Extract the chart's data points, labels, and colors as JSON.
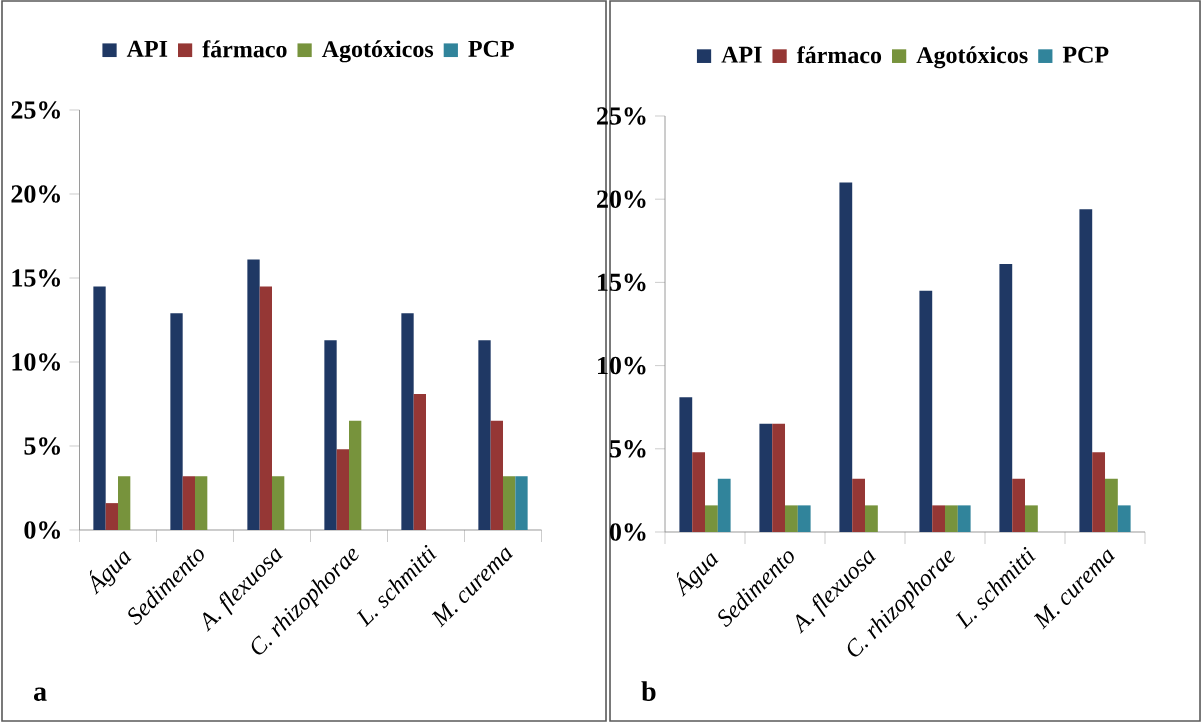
{
  "chart_data": [
    {
      "type": "bar",
      "categories": [
        "Água",
        "Sedimento",
        "A. flexuosa",
        "C. rhizophorae",
        "L. schmitti",
        "M. curema"
      ],
      "series": [
        {
          "name": "API",
          "color": "#1f3864",
          "values": [
            14.5,
            12.9,
            16.1,
            11.3,
            12.9,
            11.3
          ]
        },
        {
          "name": "fármaco",
          "color": "#953735",
          "values": [
            1.6,
            3.2,
            14.5,
            4.8,
            8.1,
            6.5
          ]
        },
        {
          "name": "Agotóxicos",
          "color": "#77933c",
          "values": [
            3.2,
            3.2,
            3.2,
            6.5,
            0,
            3.2
          ]
        },
        {
          "name": "PCP",
          "color": "#31849b",
          "values": [
            0,
            0,
            0,
            0,
            0,
            3.2
          ]
        }
      ],
      "ylim": [
        0,
        25
      ],
      "yticks": [
        {
          "value": 0,
          "label": "0%"
        },
        {
          "value": 5,
          "label": "5%"
        },
        {
          "value": 10,
          "label": "10%"
        },
        {
          "value": 15,
          "label": "15%"
        },
        {
          "value": 20,
          "label": "20%"
        },
        {
          "value": 25,
          "label": "25%"
        }
      ],
      "grid": false,
      "legend": "top",
      "annotations": [
        "a"
      ]
    },
    {
      "type": "bar",
      "categories": [
        "Água",
        "Sedimento",
        "A. flexuosa",
        "C. rhizophorae",
        "L. schmitti",
        "M. curema"
      ],
      "series": [
        {
          "name": "API",
          "color": "#1f3864",
          "values": [
            8.1,
            6.5,
            21.0,
            14.5,
            16.1,
            19.4
          ]
        },
        {
          "name": "fármaco",
          "color": "#953735",
          "values": [
            4.8,
            6.5,
            3.2,
            1.6,
            3.2,
            4.8
          ]
        },
        {
          "name": "Agotóxicos",
          "color": "#77933c",
          "values": [
            1.6,
            1.6,
            1.6,
            1.6,
            1.6,
            3.2
          ]
        },
        {
          "name": "PCP",
          "color": "#31849b",
          "values": [
            3.2,
            1.6,
            0,
            1.6,
            0,
            1.6
          ]
        }
      ],
      "ylim": [
        0,
        25
      ],
      "yticks": [
        {
          "value": 0,
          "label": "0%"
        },
        {
          "value": 5,
          "label": "5%"
        },
        {
          "value": 10,
          "label": "10%"
        },
        {
          "value": 15,
          "label": "15%"
        },
        {
          "value": 20,
          "label": "20%"
        },
        {
          "value": 25,
          "label": "25%"
        }
      ],
      "grid": false,
      "legend": "top",
      "annotations": [
        "b"
      ]
    }
  ]
}
